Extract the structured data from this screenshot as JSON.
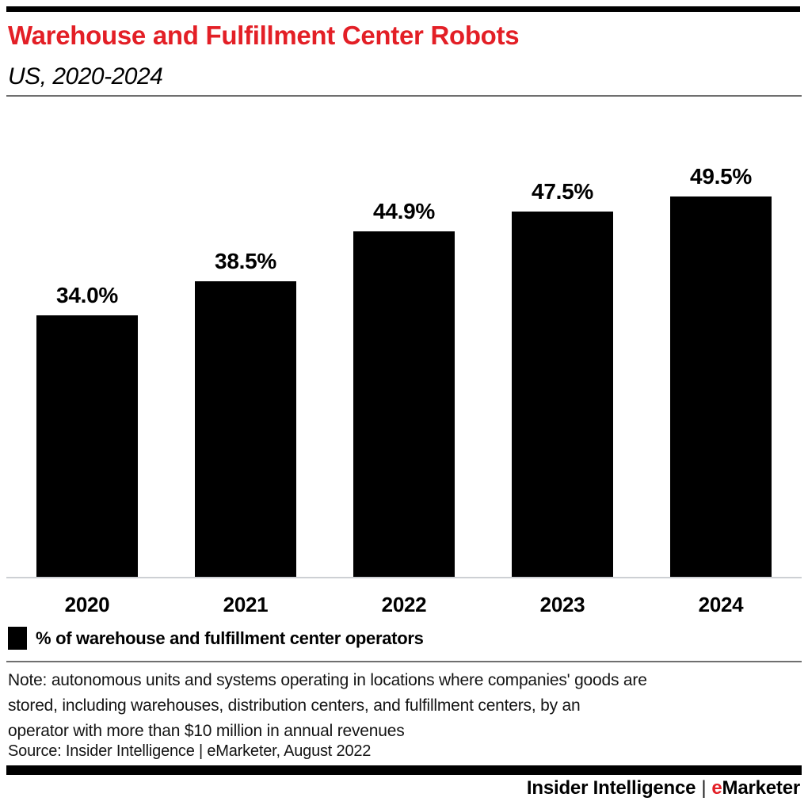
{
  "header": {
    "title": "Warehouse and Fulfillment Center Robots",
    "subtitle": "US, 2020-2024"
  },
  "chart_data": {
    "type": "bar",
    "title": "Warehouse and Fulfillment Center Robots",
    "subtitle": "US, 2020-2024",
    "categories": [
      "2020",
      "2021",
      "2022",
      "2023",
      "2024"
    ],
    "values": [
      34.0,
      38.5,
      44.9,
      47.5,
      49.5
    ],
    "value_labels": [
      "34.0%",
      "38.5%",
      "44.9%",
      "47.5%",
      "49.5%"
    ],
    "unit": "%",
    "ylim": [
      0,
      55
    ],
    "grid": false,
    "data_labels": true,
    "bar_color": "#000000",
    "legend_position": "bottom",
    "legend": [
      {
        "label": "% of warehouse and fulfillment center operators",
        "color": "#000000"
      }
    ]
  },
  "footnote": {
    "note_lines": [
      "Note: autonomous units and systems operating in locations where companies' goods are",
      "stored, including warehouses, distribution centers, and fulfillment centers, by an",
      "operator with more than $10 million in annual revenues"
    ],
    "source": "Source: Insider Intelligence | eMarketer, August 2022"
  },
  "footer": {
    "brand_left": "Insider Intelligence",
    "separator": "|",
    "emarketer_initial": "e",
    "emarketer_rest": "Marketer"
  },
  "colors": {
    "accent_red": "#e31f26",
    "bar_black": "#000000",
    "rule_gray": "#6f6f6f",
    "baseline_gray": "#cdd0d4"
  }
}
